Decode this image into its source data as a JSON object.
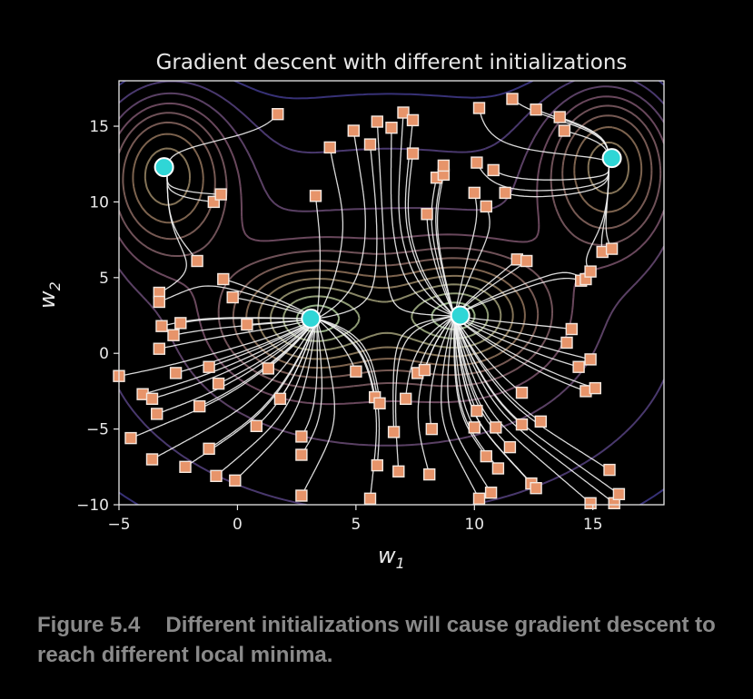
{
  "chart_data": {
    "type": "contour",
    "title": "Gradient descent with different initializations",
    "xlabel": "w",
    "xlabel_sub": "1",
    "ylabel": "w",
    "ylabel_sub": "2",
    "xlim": [
      -5,
      18
    ],
    "ylim": [
      -10,
      18
    ],
    "xticks": [
      -5,
      0,
      5,
      10,
      15
    ],
    "yticks": [
      -10,
      -5,
      0,
      5,
      10,
      15
    ],
    "xtick_labels": [
      "−5",
      "0",
      "5",
      "10",
      "15"
    ],
    "ytick_labels": [
      "−10",
      "−5",
      "0",
      "5",
      "10",
      "15"
    ],
    "grid": false,
    "local_minima": [
      {
        "x": 3.1,
        "y": 2.3
      },
      {
        "x": 9.4,
        "y": 2.5
      },
      {
        "x": -3.1,
        "y": 12.3
      },
      {
        "x": 15.8,
        "y": 12.9
      }
    ],
    "initializations": [
      [
        1.7,
        15.8
      ],
      [
        -1.0,
        10.0
      ],
      [
        -0.7,
        10.5
      ],
      [
        -1.7,
        6.1
      ],
      [
        -0.6,
        4.9
      ],
      [
        -3.3,
        4.0
      ],
      [
        -3.3,
        3.4
      ],
      [
        -3.2,
        1.8
      ],
      [
        -2.7,
        1.2
      ],
      [
        -2.4,
        2.0
      ],
      [
        -0.2,
        3.7
      ],
      [
        0.4,
        1.9
      ],
      [
        -3.3,
        0.3
      ],
      [
        -5.0,
        -1.5
      ],
      [
        -2.6,
        -1.3
      ],
      [
        -4.0,
        -2.7
      ],
      [
        -3.6,
        -3.0
      ],
      [
        -3.4,
        -4.0
      ],
      [
        -1.2,
        -0.9
      ],
      [
        -0.8,
        -2.0
      ],
      [
        1.3,
        -1.0
      ],
      [
        -1.6,
        -3.5
      ],
      [
        -4.5,
        -5.6
      ],
      [
        -3.6,
        -7.0
      ],
      [
        -1.2,
        -6.3
      ],
      [
        -2.2,
        -7.5
      ],
      [
        -0.9,
        -8.1
      ],
      [
        -0.1,
        -8.4
      ],
      [
        0.8,
        -4.8
      ],
      [
        1.8,
        -3.0
      ],
      [
        2.7,
        -5.5
      ],
      [
        2.7,
        -6.7
      ],
      [
        2.7,
        -9.4
      ],
      [
        3.3,
        10.4
      ],
      [
        3.9,
        13.6
      ],
      [
        4.9,
        14.7
      ],
      [
        5.6,
        13.8
      ],
      [
        5.9,
        15.3
      ],
      [
        6.5,
        14.9
      ],
      [
        7.0,
        15.9
      ],
      [
        7.4,
        15.4
      ],
      [
        7.4,
        13.2
      ],
      [
        8.0,
        9.2
      ],
      [
        8.4,
        11.6
      ],
      [
        8.7,
        11.8
      ],
      [
        8.7,
        12.4
      ],
      [
        10.1,
        12.6
      ],
      [
        10.0,
        10.6
      ],
      [
        10.5,
        9.7
      ],
      [
        10.8,
        12.1
      ],
      [
        11.3,
        10.6
      ],
      [
        10.2,
        16.2
      ],
      [
        11.6,
        16.8
      ],
      [
        12.6,
        16.1
      ],
      [
        13.6,
        15.6
      ],
      [
        13.8,
        14.7
      ],
      [
        11.8,
        6.2
      ],
      [
        12.2,
        6.1
      ],
      [
        14.5,
        4.8
      ],
      [
        14.7,
        4.9
      ],
      [
        14.9,
        5.4
      ],
      [
        15.4,
        6.7
      ],
      [
        15.8,
        6.9
      ],
      [
        5.0,
        -1.2
      ],
      [
        5.8,
        -2.9
      ],
      [
        6.0,
        -3.3
      ],
      [
        6.6,
        -5.2
      ],
      [
        7.1,
        -3.0
      ],
      [
        6.8,
        -7.8
      ],
      [
        5.9,
        -7.4
      ],
      [
        7.6,
        -1.3
      ],
      [
        7.9,
        -1.1
      ],
      [
        8.2,
        -5.0
      ],
      [
        8.1,
        -8.0
      ],
      [
        10.0,
        -4.9
      ],
      [
        10.1,
        -3.8
      ],
      [
        10.5,
        -6.8
      ],
      [
        10.9,
        -4.9
      ],
      [
        11.0,
        -7.6
      ],
      [
        11.5,
        -6.2
      ],
      [
        12.0,
        -4.7
      ],
      [
        12.0,
        -2.6
      ],
      [
        12.4,
        -8.6
      ],
      [
        12.8,
        -4.5
      ],
      [
        12.6,
        -8.9
      ],
      [
        13.9,
        0.7
      ],
      [
        14.1,
        1.6
      ],
      [
        14.4,
        -0.9
      ],
      [
        14.7,
        -2.5
      ],
      [
        14.9,
        -0.4
      ],
      [
        15.1,
        -2.3
      ],
      [
        15.7,
        -7.7
      ],
      [
        14.9,
        -9.9
      ],
      [
        15.9,
        -9.9
      ],
      [
        16.1,
        -9.3
      ],
      [
        5.6,
        -9.6
      ],
      [
        10.2,
        -9.6
      ],
      [
        10.7,
        -9.2
      ]
    ]
  },
  "caption": {
    "figure_label": "Figure 5.4",
    "text": "Different initializations will cause gradient descent to reach different local minima."
  }
}
